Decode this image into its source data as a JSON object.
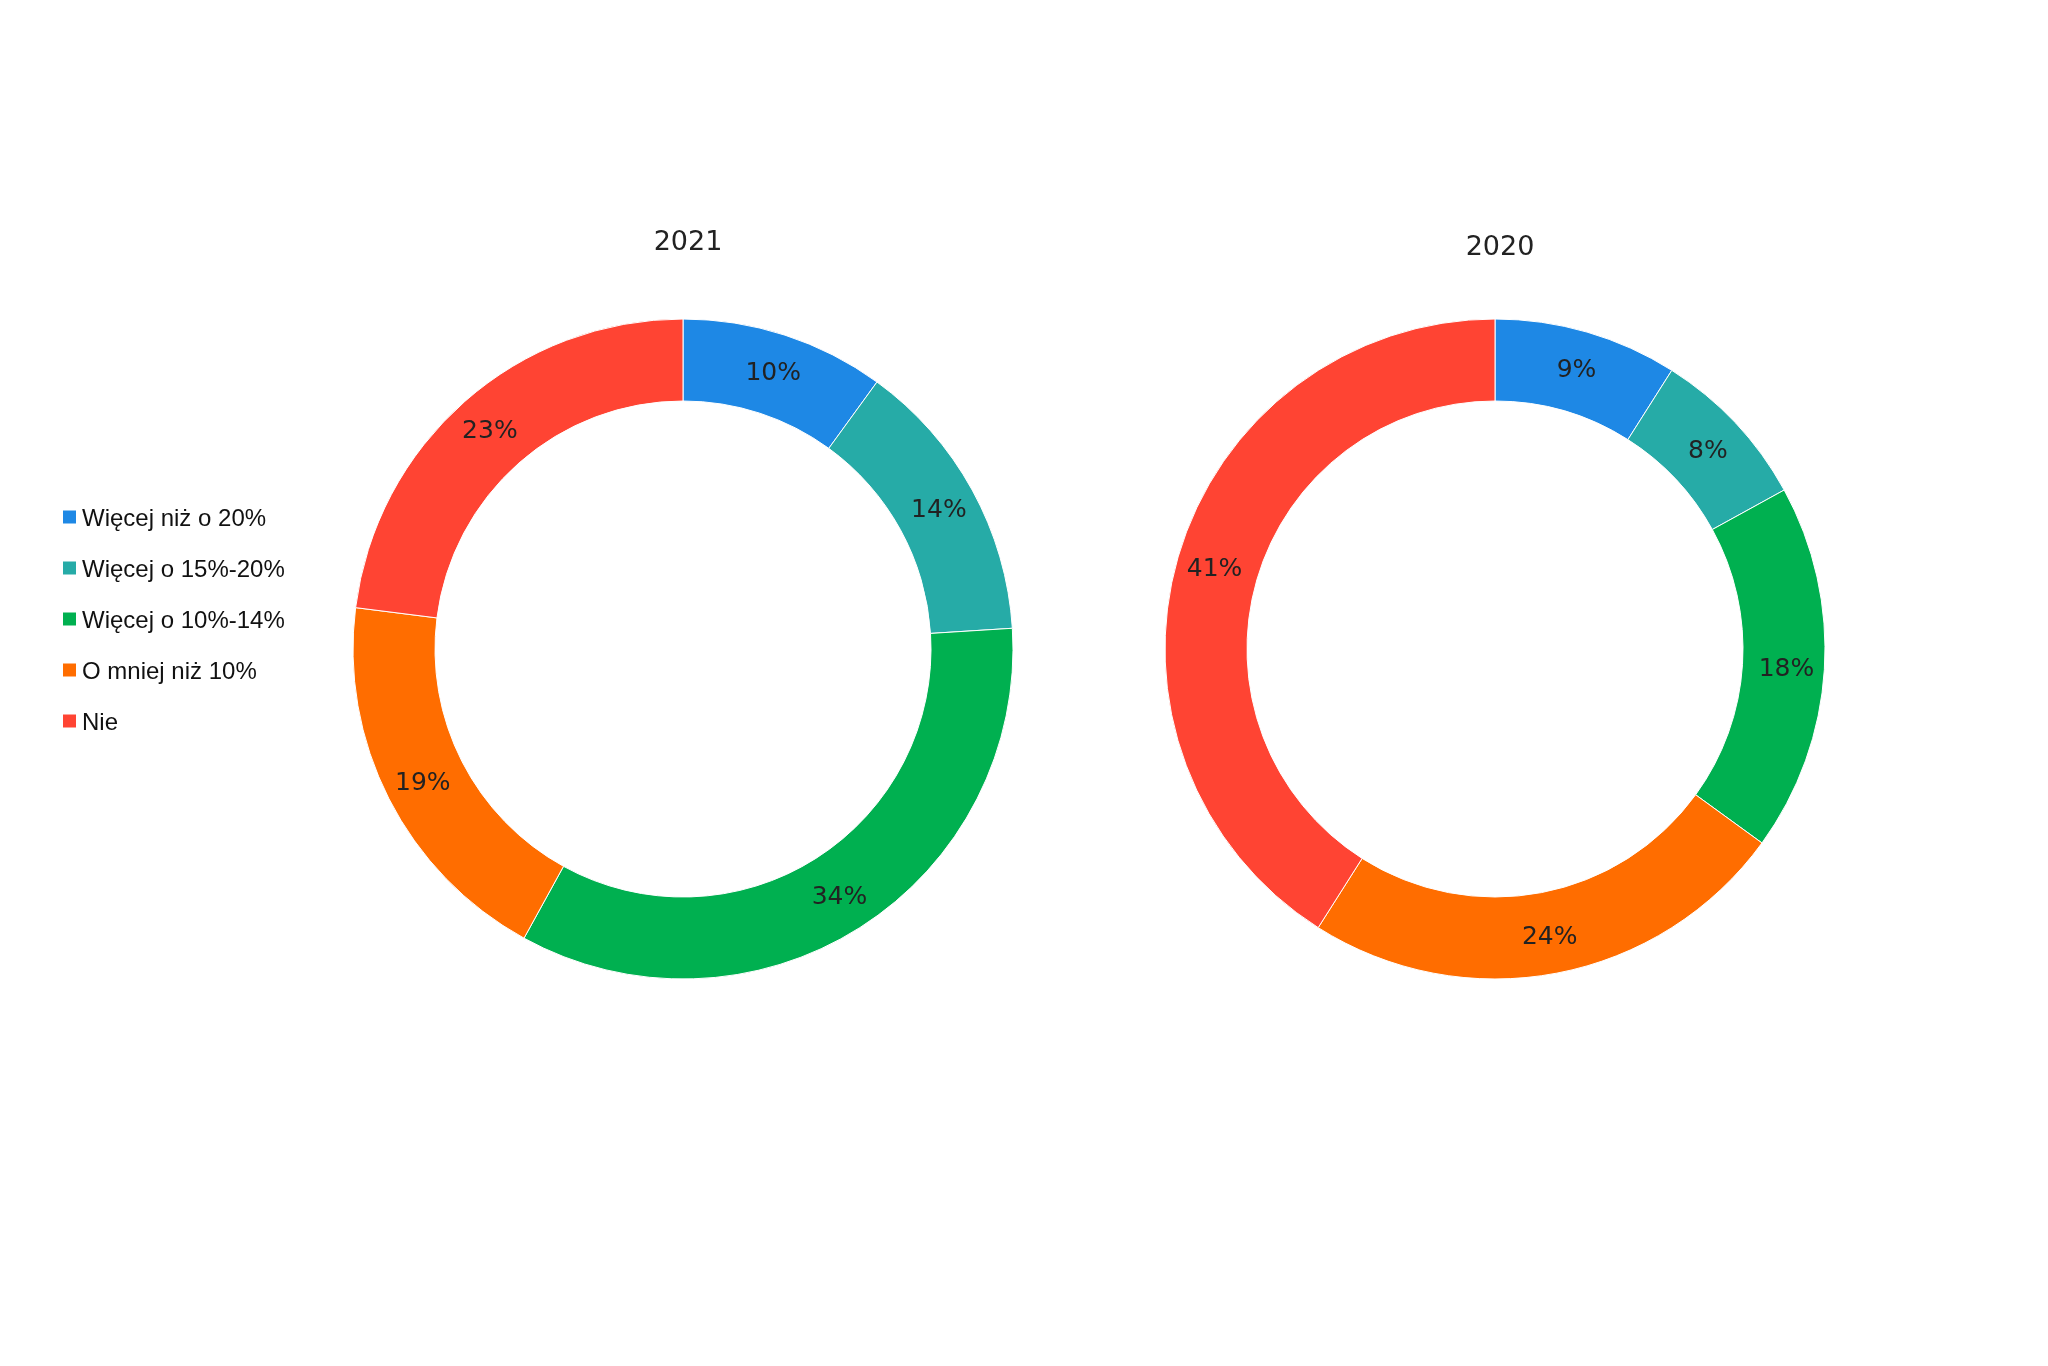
{
  "chart_data": {
    "type": "donut",
    "categories": [
      "Więcej niż o 20%",
      "Więcej o 15%-20%",
      "Więcej o 10%-14%",
      "O mniej niż 10%",
      "Nie"
    ],
    "colors": [
      "#1e88e5",
      "#26aba7",
      "#00b050",
      "#ff6d00",
      "#ff4433"
    ],
    "legend": "left",
    "series": [
      {
        "name": "2021",
        "values": [
          10,
          14,
          34,
          19,
          23
        ],
        "value_labels": [
          "10%",
          "14%",
          "34%",
          "19%",
          "23%"
        ]
      },
      {
        "name": "2020",
        "values": [
          9,
          8,
          18,
          24,
          41
        ],
        "value_labels": [
          "9%",
          "8%",
          "18%",
          "24%",
          "41%"
        ]
      }
    ]
  }
}
